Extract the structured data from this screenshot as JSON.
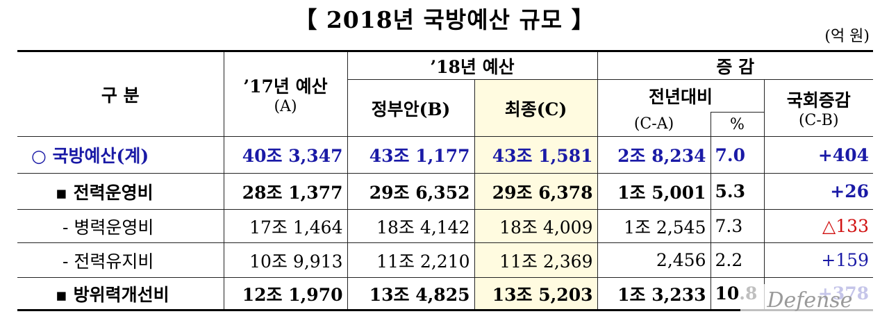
{
  "header": {
    "title": "【 2018년 국방예산 규모 】",
    "unit": "(억 원)"
  },
  "table": {
    "head": {
      "category": "구  분",
      "prev": "’17년 예산",
      "prev_sub": "(A)",
      "budget18": "’18년 예산",
      "gov": "정부안(B)",
      "final": "최종(C)",
      "change": "증  감",
      "yoy": "전년대비",
      "yoy_sub": "(C-A)",
      "pct": "%",
      "assembly": "국회증감",
      "assembly_sub": "(C-B)"
    },
    "rows": [
      [
        "○ 국방예산(계)",
        "40조 3,347",
        "43조 1,177",
        "43조 1,581",
        "2조 8,234",
        "7.0",
        "+404"
      ],
      [
        "▪ 전력운영비",
        "28조 1,377",
        "29조 6,352",
        "29조 6,378",
        "1조 5,001",
        "5.3",
        "+26"
      ],
      [
        "- 병력운영비",
        "17조 1,464",
        "18조 4,142",
        "18조 4,009",
        "1조 2,545",
        "7.3",
        "△133"
      ],
      [
        "- 전력유지비",
        "10조 9,913",
        "11조 2,210",
        "11조 2,369",
        "2,456",
        "2.2",
        "+159"
      ],
      [
        "▪ 방위력개선비",
        "12조 1,970",
        "13조 4,825",
        "13조 5,203",
        "1조 3,233",
        "10.8",
        "+378"
      ]
    ]
  },
  "watermark": "Defense"
}
